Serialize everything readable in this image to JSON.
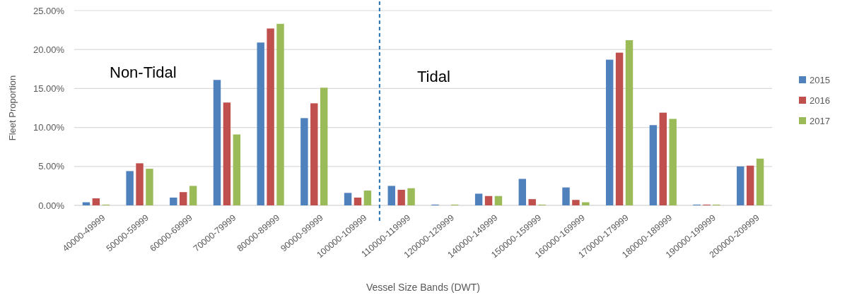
{
  "chart_data": {
    "type": "bar",
    "xlabel": "Vessel Size Bands (DWT)",
    "ylabel": "Fleet Proportion",
    "categories": [
      "40000-49999",
      "50000-59999",
      "60000-69999",
      "70000-79999",
      "80000-89999",
      "90000-99999",
      "100000-109999",
      "110000-119999",
      "120000-129999",
      "140000-149999",
      "150000-159999",
      "160000-169999",
      "170000-179999",
      "180000-189999",
      "190000-199999",
      "200000-209999"
    ],
    "series": [
      {
        "name": "2015",
        "color": "#4f81bd",
        "values": [
          0.4,
          4.4,
          1.0,
          16.1,
          20.9,
          11.2,
          1.6,
          2.5,
          0.1,
          1.5,
          3.4,
          2.3,
          18.7,
          10.3,
          0.1,
          5.0
        ]
      },
      {
        "name": "2016",
        "color": "#c0504d",
        "values": [
          0.9,
          5.4,
          1.7,
          13.2,
          22.7,
          13.1,
          1.0,
          2.0,
          0,
          1.2,
          0.8,
          0.7,
          19.6,
          11.9,
          0.1,
          5.1
        ]
      },
      {
        "name": "2017",
        "color": "#9bbb59",
        "values": [
          0.1,
          4.7,
          2.5,
          9.1,
          23.3,
          15.1,
          1.9,
          2.2,
          0.1,
          1.2,
          0.1,
          0.4,
          21.2,
          11.1,
          0.1,
          6.0
        ]
      }
    ],
    "ylim": [
      0,
      25
    ],
    "yticks": [
      {
        "value": 0,
        "label": "0.00%"
      },
      {
        "value": 5,
        "label": "5.00%"
      },
      {
        "value": 10,
        "label": "10.00%"
      },
      {
        "value": 15,
        "label": "15.00%"
      },
      {
        "value": 20,
        "label": "20.00%"
      },
      {
        "value": 25,
        "label": "25.00%"
      }
    ],
    "grid": "y",
    "legend": "right",
    "annotations": [
      "Non-Tidal",
      "Tidal"
    ]
  }
}
